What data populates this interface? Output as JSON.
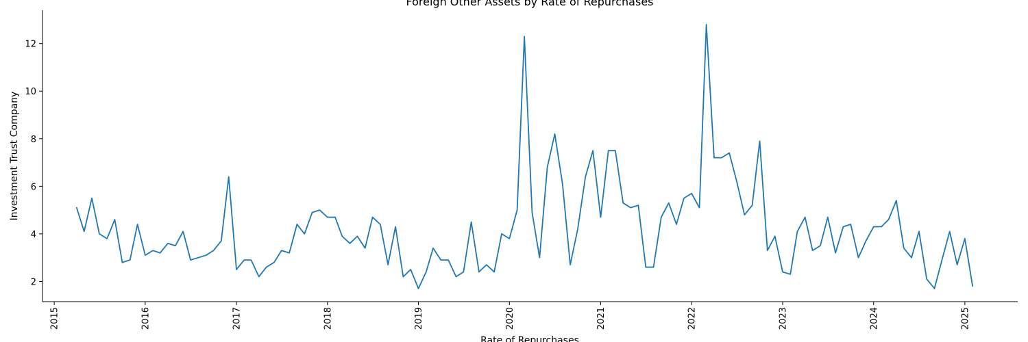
{
  "chart_data": {
    "type": "line",
    "title": "Foreign Other Assets by Rate of Repurchases",
    "xlabel": "Rate of Repurchases",
    "ylabel": "Investment Trust Company",
    "xlim": [
      "2014-11-15",
      "2025-08-01"
    ],
    "ylim": [
      1.15,
      13.4
    ],
    "x_ticks": [
      "2015-01-01",
      "2016-01-01",
      "2017-01-01",
      "2018-01-01",
      "2019-01-01",
      "2020-01-01",
      "2021-01-01",
      "2022-01-01",
      "2023-01-01",
      "2024-01-01",
      "2025-01-01"
    ],
    "x_tick_labels": [
      "2015",
      "2016",
      "2017",
      "2018",
      "2019",
      "2020",
      "2021",
      "2022",
      "2023",
      "2024",
      "2025"
    ],
    "y_ticks": [
      2,
      4,
      6,
      8,
      10,
      12
    ],
    "y_tick_labels": [
      "2",
      "4",
      "6",
      "8",
      "10",
      "12"
    ],
    "grid": false,
    "series": [
      {
        "color": "#1f77b4",
        "points": [
          [
            "2015-04-01",
            5.1
          ],
          [
            "2015-05-01",
            4.1
          ],
          [
            "2015-06-01",
            5.5
          ],
          [
            "2015-07-01",
            4.0
          ],
          [
            "2015-08-01",
            3.8
          ],
          [
            "2015-09-01",
            4.6
          ],
          [
            "2015-10-01",
            2.8
          ],
          [
            "2015-11-01",
            2.9
          ],
          [
            "2015-12-01",
            4.4
          ],
          [
            "2016-01-01",
            3.1
          ],
          [
            "2016-02-01",
            3.3
          ],
          [
            "2016-03-01",
            3.2
          ],
          [
            "2016-04-01",
            3.6
          ],
          [
            "2016-05-01",
            3.5
          ],
          [
            "2016-06-01",
            4.1
          ],
          [
            "2016-07-01",
            2.9
          ],
          [
            "2016-09-01",
            3.1
          ],
          [
            "2016-10-01",
            3.3
          ],
          [
            "2016-11-01",
            3.7
          ],
          [
            "2016-12-01",
            6.4
          ],
          [
            "2017-01-01",
            2.5
          ],
          [
            "2017-02-01",
            2.9
          ],
          [
            "2017-03-01",
            2.9
          ],
          [
            "2017-04-01",
            2.2
          ],
          [
            "2017-05-01",
            2.6
          ],
          [
            "2017-06-01",
            2.8
          ],
          [
            "2017-07-01",
            3.3
          ],
          [
            "2017-08-01",
            3.2
          ],
          [
            "2017-09-01",
            4.4
          ],
          [
            "2017-10-01",
            4.0
          ],
          [
            "2017-11-01",
            4.9
          ],
          [
            "2017-12-01",
            5.0
          ],
          [
            "2018-01-01",
            4.7
          ],
          [
            "2018-02-01",
            4.7
          ],
          [
            "2018-03-01",
            3.9
          ],
          [
            "2018-04-01",
            3.6
          ],
          [
            "2018-05-01",
            3.9
          ],
          [
            "2018-06-01",
            3.4
          ],
          [
            "2018-07-01",
            4.7
          ],
          [
            "2018-08-01",
            4.4
          ],
          [
            "2018-09-01",
            2.7
          ],
          [
            "2018-10-01",
            4.3
          ],
          [
            "2018-11-01",
            2.2
          ],
          [
            "2018-12-01",
            2.5
          ],
          [
            "2019-01-01",
            1.7
          ],
          [
            "2019-02-01",
            2.4
          ],
          [
            "2019-03-01",
            3.4
          ],
          [
            "2019-04-01",
            2.9
          ],
          [
            "2019-05-01",
            2.9
          ],
          [
            "2019-06-01",
            2.2
          ],
          [
            "2019-07-01",
            2.4
          ],
          [
            "2019-08-01",
            4.5
          ],
          [
            "2019-09-01",
            2.4
          ],
          [
            "2019-10-01",
            2.7
          ],
          [
            "2019-11-01",
            2.4
          ],
          [
            "2019-12-01",
            4.0
          ],
          [
            "2020-01-01",
            3.8
          ],
          [
            "2020-02-01",
            5.0
          ],
          [
            "2020-03-01",
            12.3
          ],
          [
            "2020-04-01",
            4.9
          ],
          [
            "2020-05-01",
            3.0
          ],
          [
            "2020-06-01",
            6.8
          ],
          [
            "2020-07-01",
            8.2
          ],
          [
            "2020-08-01",
            6.1
          ],
          [
            "2020-09-01",
            2.7
          ],
          [
            "2020-10-01",
            4.2
          ],
          [
            "2020-11-01",
            6.4
          ],
          [
            "2020-12-01",
            7.5
          ],
          [
            "2021-01-01",
            4.7
          ],
          [
            "2021-02-01",
            7.5
          ],
          [
            "2021-03-01",
            7.5
          ],
          [
            "2021-04-01",
            5.3
          ],
          [
            "2021-05-01",
            5.1
          ],
          [
            "2021-06-01",
            5.2
          ],
          [
            "2021-07-01",
            2.6
          ],
          [
            "2021-08-01",
            2.6
          ],
          [
            "2021-09-01",
            4.7
          ],
          [
            "2021-10-01",
            5.3
          ],
          [
            "2021-11-01",
            4.4
          ],
          [
            "2021-12-01",
            5.5
          ],
          [
            "2022-01-01",
            5.7
          ],
          [
            "2022-02-01",
            5.1
          ],
          [
            "2022-03-01",
            12.8
          ],
          [
            "2022-04-01",
            7.2
          ],
          [
            "2022-05-01",
            7.2
          ],
          [
            "2022-06-01",
            7.4
          ],
          [
            "2022-07-01",
            6.2
          ],
          [
            "2022-08-01",
            4.8
          ],
          [
            "2022-09-01",
            5.2
          ],
          [
            "2022-10-01",
            7.9
          ],
          [
            "2022-11-01",
            3.3
          ],
          [
            "2022-12-01",
            3.9
          ],
          [
            "2023-01-01",
            2.4
          ],
          [
            "2023-02-01",
            2.3
          ],
          [
            "2023-03-01",
            4.1
          ],
          [
            "2023-04-01",
            4.7
          ],
          [
            "2023-05-01",
            3.3
          ],
          [
            "2023-06-01",
            3.5
          ],
          [
            "2023-07-01",
            4.7
          ],
          [
            "2023-08-01",
            3.2
          ],
          [
            "2023-09-01",
            4.3
          ],
          [
            "2023-10-01",
            4.4
          ],
          [
            "2023-11-01",
            3.0
          ],
          [
            "2023-12-01",
            3.7
          ],
          [
            "2024-01-01",
            4.3
          ],
          [
            "2024-02-01",
            4.3
          ],
          [
            "2024-03-01",
            4.6
          ],
          [
            "2024-04-01",
            5.4
          ],
          [
            "2024-05-01",
            3.4
          ],
          [
            "2024-06-01",
            3.0
          ],
          [
            "2024-07-01",
            4.1
          ],
          [
            "2024-08-01",
            2.1
          ],
          [
            "2024-09-01",
            1.7
          ],
          [
            "2024-10-01",
            2.9
          ],
          [
            "2024-11-01",
            4.1
          ],
          [
            "2024-12-01",
            2.7
          ],
          [
            "2025-01-01",
            3.8
          ],
          [
            "2025-02-01",
            1.8
          ]
        ]
      }
    ]
  }
}
